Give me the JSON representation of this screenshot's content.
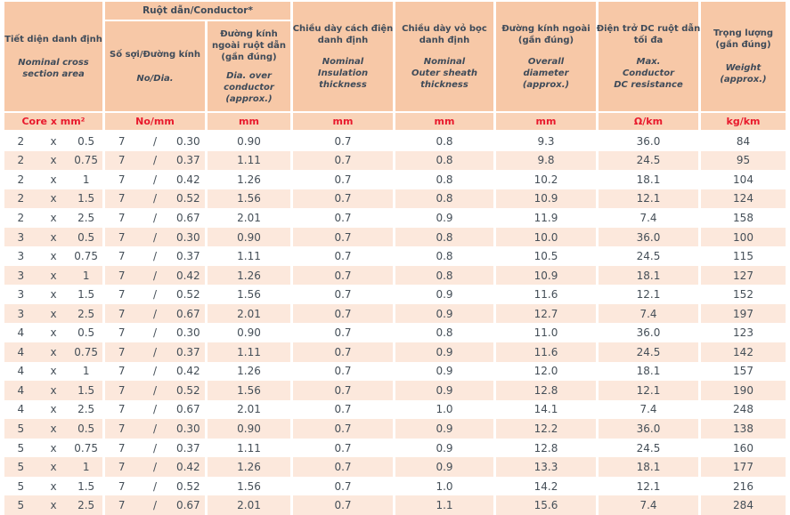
{
  "table": {
    "header": {
      "conductor_group": "Ruột dẫn/Conductor*",
      "columns": [
        {
          "vi": "Tiết diện danh định",
          "en": "Nominal cross\nsection area",
          "unit": "Core x mm²"
        },
        {
          "vi": "Số sợi/Đường kính",
          "en": "No/Dia.",
          "unit": "No/mm"
        },
        {
          "vi": "Đường kính\nngoài ruột dẫn\n(gần đúng)",
          "en": "Dia. over\nconductor\n(approx.)",
          "unit": "mm"
        },
        {
          "vi": "Chiều dày cách điện\ndanh định",
          "en": "Nominal\nInsulation\nthickness",
          "unit": "mm"
        },
        {
          "vi": "Chiều dày vỏ bọc\ndanh định",
          "en": "Nominal\nOuter sheath\nthickness",
          "unit": "mm"
        },
        {
          "vi": "Đường kính ngoài\n(gần đúng)",
          "en": "Overall\ndiameter\n(approx.)",
          "unit": "mm"
        },
        {
          "vi": "Điện trở DC ruột dẫn\ntối đa",
          "en": "Max.\nConductor\nDC resistance",
          "unit": "Ω/km"
        },
        {
          "vi": "Trọng lượng\n(gần đúng)",
          "en": "Weight\n(approx.)",
          "unit": "kg/km"
        }
      ]
    },
    "rows": [
      [
        "2",
        "x",
        "0.5",
        "7",
        "/",
        "0.30",
        "0.90",
        "0.7",
        "0.8",
        "9.3",
        "36.0",
        "84"
      ],
      [
        "2",
        "x",
        "0.75",
        "7",
        "/",
        "0.37",
        "1.11",
        "0.7",
        "0.8",
        "9.8",
        "24.5",
        "95"
      ],
      [
        "2",
        "x",
        "1",
        "7",
        "/",
        "0.42",
        "1.26",
        "0.7",
        "0.8",
        "10.2",
        "18.1",
        "104"
      ],
      [
        "2",
        "x",
        "1.5",
        "7",
        "/",
        "0.52",
        "1.56",
        "0.7",
        "0.8",
        "10.9",
        "12.1",
        "124"
      ],
      [
        "2",
        "x",
        "2.5",
        "7",
        "/",
        "0.67",
        "2.01",
        "0.7",
        "0.9",
        "11.9",
        "7.4",
        "158"
      ],
      [
        "3",
        "x",
        "0.5",
        "7",
        "/",
        "0.30",
        "0.90",
        "0.7",
        "0.8",
        "10.0",
        "36.0",
        "100"
      ],
      [
        "3",
        "x",
        "0.75",
        "7",
        "/",
        "0.37",
        "1.11",
        "0.7",
        "0.8",
        "10.5",
        "24.5",
        "115"
      ],
      [
        "3",
        "x",
        "1",
        "7",
        "/",
        "0.42",
        "1.26",
        "0.7",
        "0.8",
        "10.9",
        "18.1",
        "127"
      ],
      [
        "3",
        "x",
        "1.5",
        "7",
        "/",
        "0.52",
        "1.56",
        "0.7",
        "0.9",
        "11.6",
        "12.1",
        "152"
      ],
      [
        "3",
        "x",
        "2.5",
        "7",
        "/",
        "0.67",
        "2.01",
        "0.7",
        "0.9",
        "12.7",
        "7.4",
        "197"
      ],
      [
        "4",
        "x",
        "0.5",
        "7",
        "/",
        "0.30",
        "0.90",
        "0.7",
        "0.8",
        "11.0",
        "36.0",
        "123"
      ],
      [
        "4",
        "x",
        "0.75",
        "7",
        "/",
        "0.37",
        "1.11",
        "0.7",
        "0.9",
        "11.6",
        "24.5",
        "142"
      ],
      [
        "4",
        "x",
        "1",
        "7",
        "/",
        "0.42",
        "1.26",
        "0.7",
        "0.9",
        "12.0",
        "18.1",
        "157"
      ],
      [
        "4",
        "x",
        "1.5",
        "7",
        "/",
        "0.52",
        "1.56",
        "0.7",
        "0.9",
        "12.8",
        "12.1",
        "190"
      ],
      [
        "4",
        "x",
        "2.5",
        "7",
        "/",
        "0.67",
        "2.01",
        "0.7",
        "1.0",
        "14.1",
        "7.4",
        "248"
      ],
      [
        "5",
        "x",
        "0.5",
        "7",
        "/",
        "0.30",
        "0.90",
        "0.7",
        "0.9",
        "12.2",
        "36.0",
        "138"
      ],
      [
        "5",
        "x",
        "0.75",
        "7",
        "/",
        "0.37",
        "1.11",
        "0.7",
        "0.9",
        "12.8",
        "24.5",
        "160"
      ],
      [
        "5",
        "x",
        "1",
        "7",
        "/",
        "0.42",
        "1.26",
        "0.7",
        "0.9",
        "13.3",
        "18.1",
        "177"
      ],
      [
        "5",
        "x",
        "1.5",
        "7",
        "/",
        "0.52",
        "1.56",
        "0.7",
        "1.0",
        "14.2",
        "12.1",
        "216"
      ],
      [
        "5",
        "x",
        "2.5",
        "7",
        "/",
        "0.67",
        "2.01",
        "0.7",
        "1.1",
        "15.6",
        "7.4",
        "284"
      ]
    ]
  },
  "colors": {
    "header_bg": "#f7c8a7",
    "units_bg": "#f9d3b8",
    "alt_row_bg": "#fce8dc",
    "header_text": "#3f4b59",
    "data_text": "#454f58",
    "units_text": "#e8192c"
  }
}
